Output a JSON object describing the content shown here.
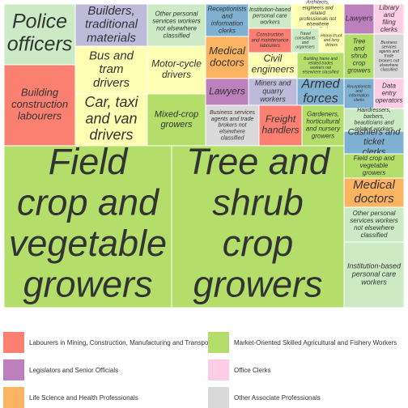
{
  "chart_data": {
    "type": "treemap",
    "cells": [
      {
        "label": "Police officers",
        "group": 3
      },
      {
        "label": "Builders, traditional materials",
        "group": 2
      },
      {
        "label": "Other personal services workers not elsewhere classified",
        "group": 1
      },
      {
        "label": "Receptionists and information clerks",
        "group": 6
      },
      {
        "label": "Institution-based personal care workers",
        "group": 1
      },
      {
        "label": "Architects, engineers and related professionals not elsewhere classified",
        "group": 8
      },
      {
        "label": "Lawyers",
        "group": 10
      },
      {
        "label": "Library and filing clerks",
        "group": 9
      },
      {
        "label": "Construction and maintenance labourers",
        "group": 4
      },
      {
        "label": "Travel consultants and organisers",
        "group": 1
      },
      {
        "label": "Heavy-truck and lorry drivers",
        "group": 8
      },
      {
        "label": "Tree and shrub crop growers",
        "group": 0
      },
      {
        "label": "Business services agents and trade brokers not elsewhere classified",
        "group": 7
      },
      {
        "label": "Medical doctors",
        "group": 5
      },
      {
        "label": "Civil engineers",
        "group": 8
      },
      {
        "label": "Building frame and related trades workers not elsewhere classified",
        "group": 0
      },
      {
        "label": "Bus and tram drivers",
        "group": 8
      },
      {
        "label": "Motor-cycle drivers",
        "group": 8
      },
      {
        "label": "Building construction labourers",
        "group": 4
      },
      {
        "label": "Lawyers",
        "group": 10
      },
      {
        "label": "Miners and quarry workers",
        "group": 2
      },
      {
        "label": "Armed forces",
        "group": 6
      },
      {
        "label": "Receptionists and information clerks",
        "group": 6
      },
      {
        "label": "Data entry operators",
        "group": 9
      },
      {
        "label": "Car, taxi and van drivers",
        "group": 8
      },
      {
        "label": "Mixed-crop growers",
        "group": 0
      },
      {
        "label": "Business services agents and trade brokers not elsewhere classified",
        "group": 7
      },
      {
        "label": "Freight handlers",
        "group": 4
      },
      {
        "label": "Gardeners, horticultural and nursery growers",
        "group": 0
      },
      {
        "label": "Hairdressers, barbers, beauticians and related workers",
        "group": 1
      },
      {
        "label": "Cashiers and ticket clerks",
        "group": 6
      },
      {
        "label": "Field crop and vegetable growers",
        "group": 0
      },
      {
        "label": "Tree and shrub crop growers",
        "group": 0
      },
      {
        "label": "Field crop and vegetable growers",
        "group": 0
      },
      {
        "label": "Medical doctors",
        "group": 5
      },
      {
        "label": "Other personal services workers not elsewhere classified",
        "group": 1
      },
      {
        "label": "Institution-based personal care workers",
        "group": 1
      }
    ],
    "legend": [
      {
        "name": "Labourers in Mining, Construction, Manufacturing and Transport",
        "color": "#fb8072"
      },
      {
        "name": "Market-Oriented Skilled Agricultural and Fishery Workers",
        "color": "#b3de69"
      },
      {
        "name": "Legislators and Senior Officials",
        "color": "#bc80bd"
      },
      {
        "name": "Office Clerks",
        "color": "#fccde5"
      },
      {
        "name": "Life Science and Health Professionals",
        "color": "#fdb462"
      },
      {
        "name": "Other Associate Professionals",
        "color": "#d9d9d9"
      }
    ],
    "palette": [
      "#b3de69",
      "#ccebc5",
      "#bebada",
      "#ccebc5",
      "#fb8072",
      "#fdb462",
      "#80b1d3",
      "#d9d9d9",
      "#ffffb3",
      "#fccde5",
      "#bc80bd"
    ]
  }
}
